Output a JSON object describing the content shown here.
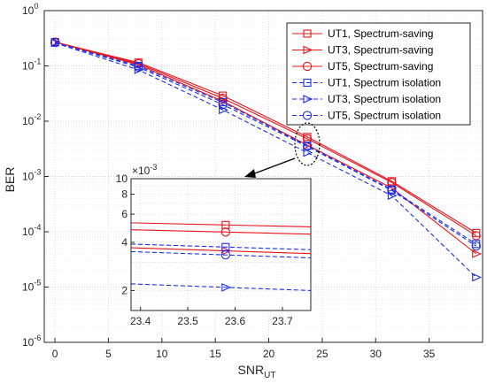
{
  "chart_data": [
    {
      "type": "line",
      "xlabel": "SNR",
      "xlabel_sub": "UT",
      "ylabel": "BER",
      "xlim": [
        -1,
        40
      ],
      "ylim": [
        1e-06,
        1
      ],
      "yscale": "log",
      "grid": true,
      "legend_position": "top-right",
      "xticks": [
        "0",
        "5",
        "10",
        "15",
        "20",
        "25",
        "30",
        "35"
      ],
      "xtick_values": [
        0,
        5,
        10,
        15,
        20,
        25,
        30,
        35
      ],
      "ytick_values": [
        1e-06,
        1e-05,
        0.0001,
        0.001,
        0.01,
        0.1,
        1
      ],
      "yticks": [
        {
          "base": "10",
          "exp": "-6"
        },
        {
          "base": "10",
          "exp": "-5"
        },
        {
          "base": "10",
          "exp": "-4"
        },
        {
          "base": "10",
          "exp": "-3"
        },
        {
          "base": "10",
          "exp": "-2"
        },
        {
          "base": "10",
          "exp": "-1"
        },
        {
          "base": "10",
          "exp": "0"
        }
      ],
      "x": [
        0,
        7.8,
        15.7,
        23.6,
        31.5,
        39.4
      ],
      "series": [
        {
          "name": "UT1, Spectrum-saving",
          "color": "#e8141c",
          "dash": false,
          "marker": "square",
          "values": [
            0.27,
            0.115,
            0.029,
            0.0052,
            0.00082,
            9.5e-05
          ]
        },
        {
          "name": "UT3, Spectrum-saving",
          "color": "#e8141c",
          "dash": false,
          "marker": "triangle-right",
          "values": [
            0.27,
            0.105,
            0.023,
            0.0037,
            0.00062,
            4e-05
          ]
        },
        {
          "name": "UT5, Spectrum-saving",
          "color": "#e8141c",
          "dash": false,
          "marker": "circle",
          "values": [
            0.27,
            0.11,
            0.026,
            0.0048,
            0.00078,
            8.5e-05
          ]
        },
        {
          "name": "UT1, Spectrum isolation",
          "color": "#1f2ee8",
          "dash": true,
          "marker": "square",
          "values": [
            0.265,
            0.1,
            0.022,
            0.0036,
            0.00058,
            6e-05
          ]
        },
        {
          "name": "UT3, Spectrum isolation",
          "color": "#1f2ee8",
          "dash": true,
          "marker": "triangle-right",
          "values": [
            0.26,
            0.085,
            0.016,
            0.0027,
            0.00045,
            1.5e-05
          ]
        },
        {
          "name": "UT5, Spectrum isolation",
          "color": "#1f2ee8",
          "dash": true,
          "marker": "circle",
          "values": [
            0.265,
            0.095,
            0.02,
            0.0035,
            0.00056,
            5.5e-05
          ]
        }
      ]
    },
    {
      "type": "line",
      "title": "",
      "exponent_label": {
        "prefix": "×10",
        "exp": "-3"
      },
      "xlim": [
        23.38,
        23.76
      ],
      "ylim": [
        0.0015,
        0.01
      ],
      "yscale": "log",
      "grid": true,
      "xticks": [
        "23.4",
        "23.5",
        "23.6",
        "23.7"
      ],
      "xtick_values": [
        23.4,
        23.5,
        23.6,
        23.7
      ],
      "yticks": [
        "2",
        "4",
        "6",
        "8",
        "10"
      ],
      "ytick_values": [
        0.002,
        0.004,
        0.006,
        0.008,
        0.01
      ],
      "marker_x": 23.58,
      "series": [
        {
          "name": "UT1, Spectrum-saving",
          "color": "#e8141c",
          "dash": false,
          "marker": "square",
          "values": [
            0.0053,
            0.005
          ]
        },
        {
          "name": "UT5, Spectrum-saving",
          "color": "#e8141c",
          "dash": false,
          "marker": "circle",
          "values": [
            0.0048,
            0.0045
          ]
        },
        {
          "name": "UT3, Spectrum-saving",
          "color": "#e8141c",
          "dash": false,
          "marker": "triangle-right",
          "values": [
            0.0037,
            0.0034
          ]
        },
        {
          "name": "UT1, Spectrum isolation",
          "color": "#1f2ee8",
          "dash": true,
          "marker": "square",
          "values": [
            0.0039,
            0.0036
          ]
        },
        {
          "name": "UT5, Spectrum isolation",
          "color": "#1f2ee8",
          "dash": true,
          "marker": "circle",
          "values": [
            0.0035,
            0.0032
          ]
        },
        {
          "name": "UT3, Spectrum isolation",
          "color": "#1f2ee8",
          "dash": true,
          "marker": "triangle-right",
          "values": [
            0.0022,
            0.002
          ]
        }
      ]
    }
  ]
}
